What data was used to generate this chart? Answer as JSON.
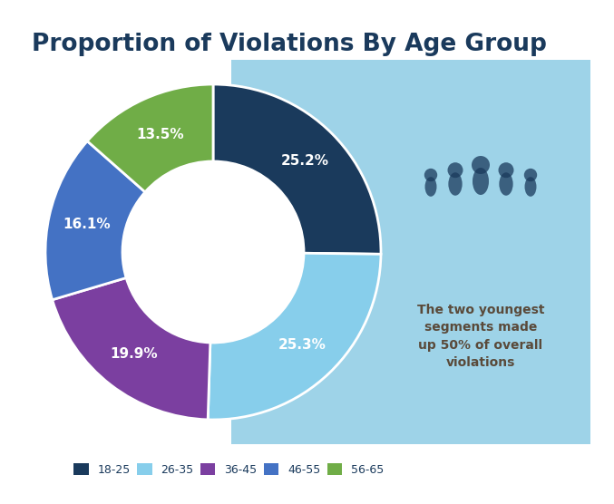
{
  "title": "Proportion of Violations By Age Group",
  "title_color": "#1a3a5c",
  "title_fontsize": 19,
  "segments": [
    {
      "label": "18-25",
      "value": 25.2,
      "color": "#1a3a5c"
    },
    {
      "label": "26-35",
      "value": 25.3,
      "color": "#87ceeb"
    },
    {
      "label": "36-45",
      "value": 19.9,
      "color": "#7b3fa0"
    },
    {
      "label": "46-55",
      "value": 16.1,
      "color": "#4472c4"
    },
    {
      "label": "56-65",
      "value": 13.5,
      "color": "#70ad47"
    }
  ],
  "annotation_text": "The two youngest\nsegments made\nup 50% of overall\nviolations",
  "annotation_color": "#5a4a3a",
  "bg_box_color": "#9ed3e8",
  "bg_color": "#ffffff",
  "legend_labels": [
    "18-25",
    "26-35",
    "36-45",
    "46-55",
    "56-65"
  ],
  "legend_colors": [
    "#1a3a5c",
    "#87ceeb",
    "#7b3fa0",
    "#4472c4",
    "#70ad47"
  ],
  "people_color": "#1a3a5c",
  "label_color_dark": "white",
  "label_color_light": "#555555"
}
